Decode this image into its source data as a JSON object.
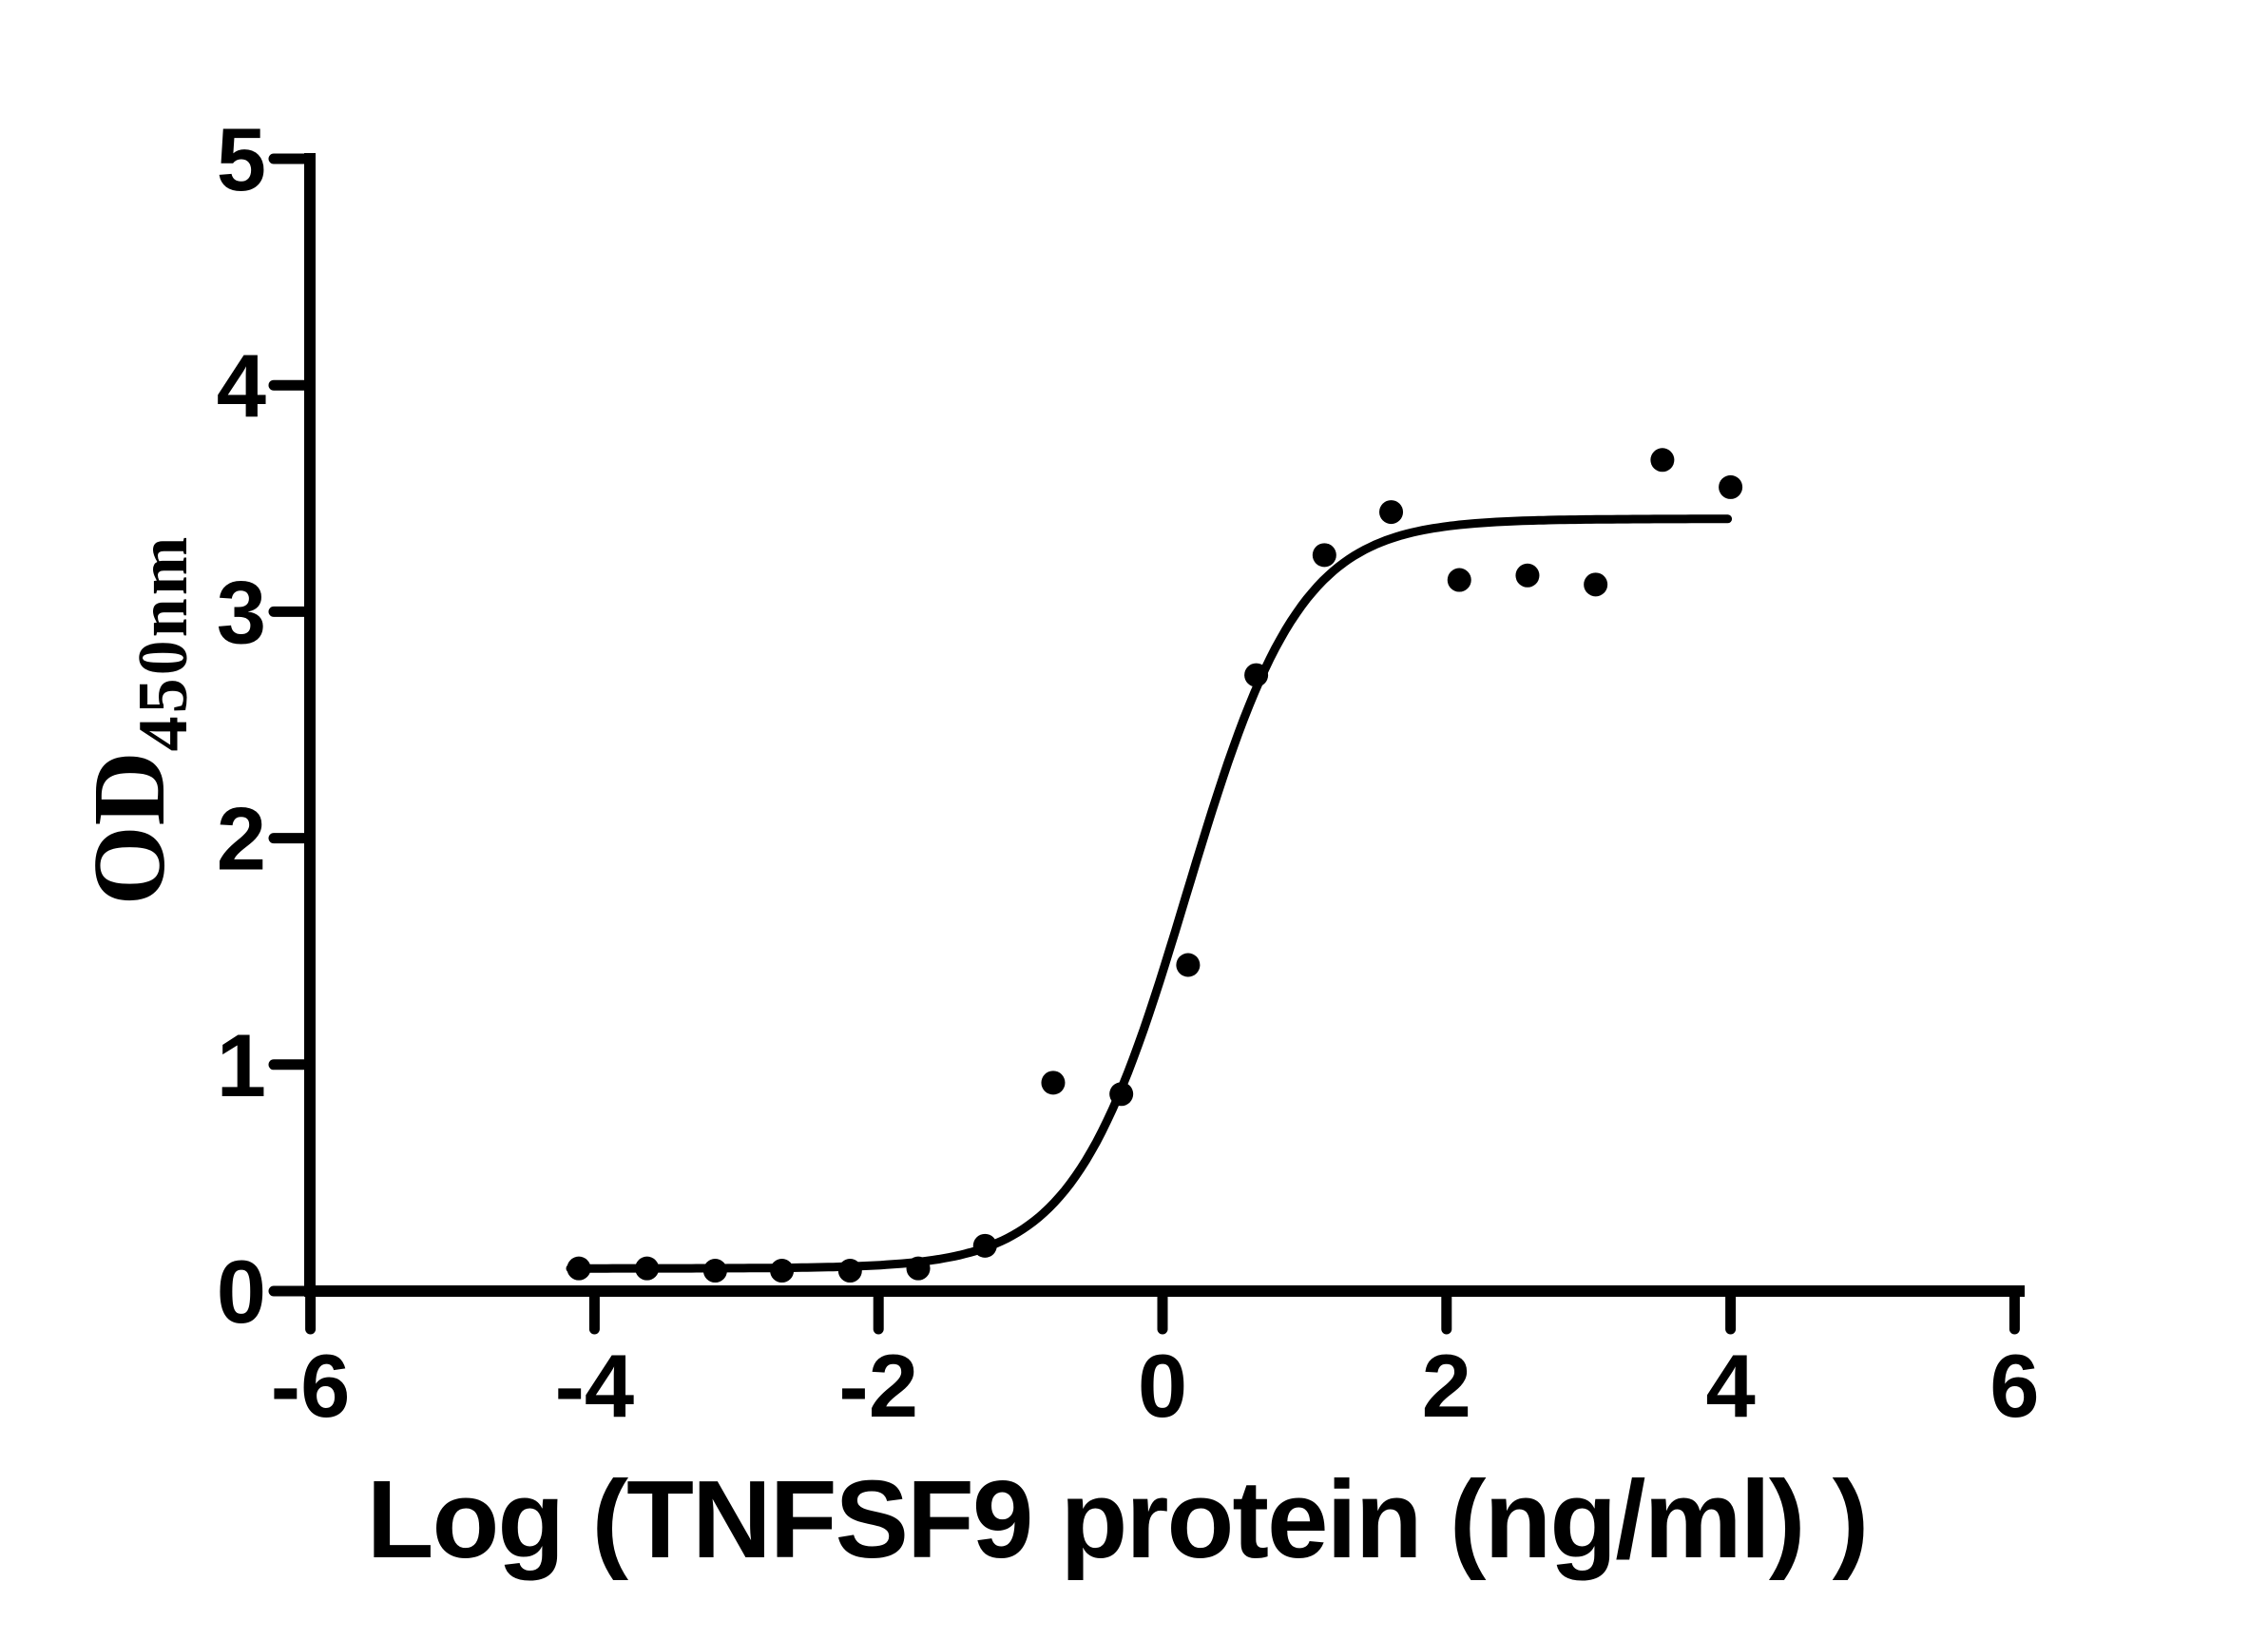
{
  "figure": {
    "background_color": "#ffffff",
    "ink_color": "#000000"
  },
  "chart_data": {
    "type": "scatter",
    "title": "",
    "xlabel": "Log (TNFSF9 protein (ng/ml) )",
    "ylabel_main": "OD",
    "ylabel_subscript": "450nm",
    "xlim": [
      -6,
      6
    ],
    "ylim": [
      0,
      5
    ],
    "xticks": [
      -6,
      -4,
      -2,
      0,
      2,
      4,
      6
    ],
    "yticks": [
      0,
      1,
      2,
      3,
      4,
      5
    ],
    "grid": false,
    "legend_position": "none",
    "marker": "filled-circle",
    "marker_color": "#000000",
    "curve_color": "#000000",
    "points": [
      {
        "x": -4.11,
        "y": 0.1
      },
      {
        "x": -3.63,
        "y": 0.1
      },
      {
        "x": -3.15,
        "y": 0.09
      },
      {
        "x": -2.68,
        "y": 0.09
      },
      {
        "x": -2.2,
        "y": 0.09
      },
      {
        "x": -1.72,
        "y": 0.1
      },
      {
        "x": -1.25,
        "y": 0.2
      },
      {
        "x": -0.77,
        "y": 0.92
      },
      {
        "x": -0.29,
        "y": 0.87
      },
      {
        "x": 0.18,
        "y": 1.44
      },
      {
        "x": 0.66,
        "y": 2.72
      },
      {
        "x": 1.14,
        "y": 3.25
      },
      {
        "x": 1.61,
        "y": 3.44
      },
      {
        "x": 2.09,
        "y": 3.14
      },
      {
        "x": 2.57,
        "y": 3.16
      },
      {
        "x": 3.05,
        "y": 3.12
      },
      {
        "x": 3.52,
        "y": 3.67
      },
      {
        "x": 4.0,
        "y": 3.55
      }
    ],
    "fit_curve": {
      "model": "four-parameter-logistic",
      "bottom": 0.1,
      "top": 3.41,
      "log_ec50": 0.17,
      "hill_slope": 1.09,
      "x_start": -4.17,
      "x_end": 3.98
    }
  }
}
